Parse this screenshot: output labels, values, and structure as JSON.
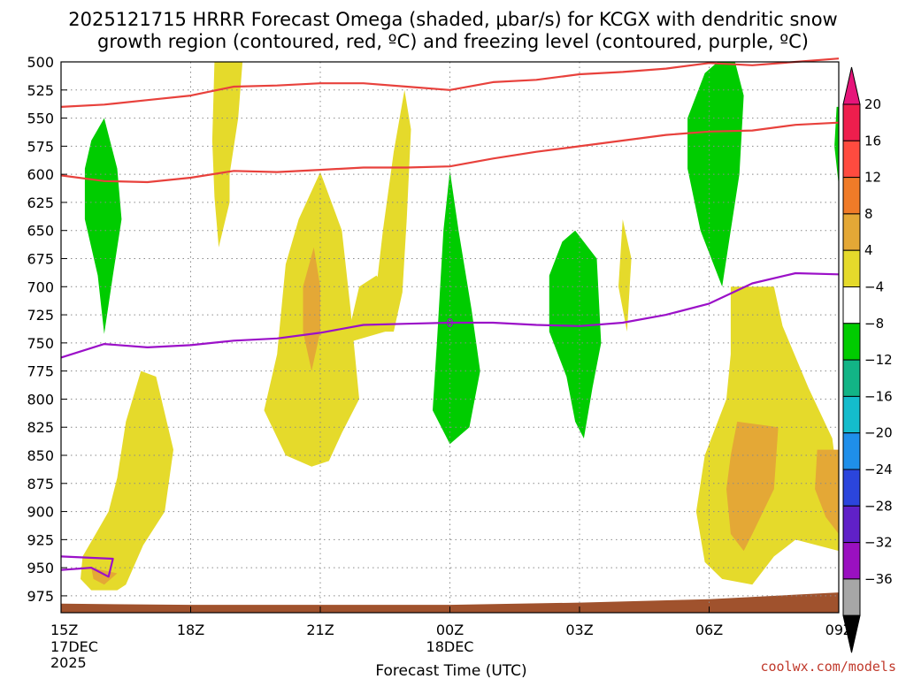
{
  "chart_data": {
    "type": "heatmap",
    "title_line1": "2025121715 HRRR Forecast Omega (shaded, μbar/s) for KCGX with dendritic snow",
    "title_line2": "growth region (contoured, red, ºC) and freezing level (contoured, purple, ºC)",
    "xlabel": "Forecast Time (UTC)",
    "ylabel": "",
    "credit": "coolwx.com/models",
    "x_unit": "hours after 15Z 17DEC",
    "xlim": [
      0,
      18
    ],
    "ylim": [
      990,
      500
    ],
    "x_ticks": [
      {
        "x": 0,
        "label": "15Z",
        "sub1": "17DEC",
        "sub2": "2025"
      },
      {
        "x": 3,
        "label": "18Z",
        "sub1": "",
        "sub2": ""
      },
      {
        "x": 6,
        "label": "21Z",
        "sub1": "",
        "sub2": ""
      },
      {
        "x": 9,
        "label": "00Z",
        "sub1": "18DEC",
        "sub2": ""
      },
      {
        "x": 12,
        "label": "03Z",
        "sub1": "",
        "sub2": ""
      },
      {
        "x": 15,
        "label": "06Z",
        "sub1": "",
        "sub2": ""
      },
      {
        "x": 18,
        "label": "09Z",
        "sub1": "",
        "sub2": ""
      }
    ],
    "y_ticks": [
      500,
      525,
      550,
      575,
      600,
      625,
      650,
      675,
      700,
      725,
      750,
      775,
      800,
      825,
      850,
      875,
      900,
      925,
      950,
      975
    ],
    "colorbar": {
      "labels": [
        "20",
        "16",
        "12",
        "8",
        "4",
        "−4",
        "−8",
        "−12",
        "−16",
        "−20",
        "−24",
        "−28",
        "−32",
        "−36"
      ],
      "colors": [
        "#ee1e4d",
        "#ff4b3f",
        "#f07b28",
        "#e4a836",
        "#e5da2b",
        "#ffffff",
        "#00cc00",
        "#12b486",
        "#14bccc",
        "#1f8fea",
        "#2b45dc",
        "#6020c8",
        "#9a10c0",
        "#a6a6a6"
      ]
    },
    "shaded_regions": [
      {
        "fill": "#e5da2b",
        "points": [
          [
            3.55,
            500
          ],
          [
            4.2,
            500
          ],
          [
            4.1,
            550
          ],
          [
            3.9,
            600
          ],
          [
            3.9,
            625
          ],
          [
            3.65,
            665
          ],
          [
            3.55,
            620
          ],
          [
            3.5,
            570
          ]
        ]
      },
      {
        "fill": "#e5da2b",
        "points": [
          [
            7.95,
            525
          ],
          [
            8.1,
            560
          ],
          [
            8.0,
            640
          ],
          [
            7.9,
            705
          ],
          [
            7.7,
            740
          ],
          [
            7.4,
            740
          ],
          [
            7.3,
            700
          ],
          [
            7.45,
            650
          ],
          [
            7.7,
            580
          ]
        ]
      },
      {
        "fill": "#e5da2b",
        "points": [
          [
            6.0,
            598
          ],
          [
            6.5,
            650
          ],
          [
            6.7,
            720
          ],
          [
            6.9,
            800
          ],
          [
            6.5,
            830
          ],
          [
            6.2,
            855
          ],
          [
            5.8,
            860
          ],
          [
            5.2,
            850
          ],
          [
            4.7,
            810
          ],
          [
            5.0,
            760
          ],
          [
            5.2,
            680
          ],
          [
            5.5,
            640
          ]
        ]
      },
      {
        "fill": "#e5da2b",
        "points": [
          [
            6.6,
            750
          ],
          [
            6.9,
            700
          ],
          [
            7.3,
            690
          ],
          [
            7.5,
            700
          ],
          [
            7.5,
            740
          ]
        ]
      },
      {
        "fill": "#e4a836",
        "points": [
          [
            5.85,
            665
          ],
          [
            6.0,
            700
          ],
          [
            6.0,
            740
          ],
          [
            5.8,
            775
          ],
          [
            5.6,
            740
          ],
          [
            5.6,
            700
          ]
        ]
      },
      {
        "fill": "#e5da2b",
        "points": [
          [
            1.85,
            775
          ],
          [
            2.2,
            780
          ],
          [
            2.6,
            845
          ],
          [
            2.4,
            900
          ],
          [
            1.9,
            930
          ],
          [
            1.5,
            965
          ],
          [
            1.3,
            970
          ],
          [
            0.7,
            970
          ],
          [
            0.45,
            960
          ],
          [
            0.5,
            940
          ],
          [
            0.8,
            920
          ],
          [
            1.1,
            900
          ],
          [
            1.3,
            870
          ],
          [
            1.5,
            820
          ]
        ]
      },
      {
        "fill": "#e4a836",
        "points": [
          [
            0.7,
            950
          ],
          [
            1.3,
            955
          ],
          [
            1.0,
            965
          ],
          [
            0.75,
            960
          ]
        ]
      },
      {
        "fill": "#e5da2b",
        "points": [
          [
            13.0,
            640
          ],
          [
            13.2,
            675
          ],
          [
            13.1,
            740
          ],
          [
            12.9,
            700
          ]
        ]
      },
      {
        "fill": "#e5da2b",
        "points": [
          [
            15.5,
            700
          ],
          [
            16.5,
            700
          ],
          [
            16.7,
            735
          ],
          [
            17.3,
            790
          ],
          [
            17.85,
            835
          ],
          [
            18.0,
            880
          ],
          [
            18.0,
            935
          ],
          [
            17.0,
            925
          ],
          [
            16.5,
            940
          ],
          [
            16.0,
            965
          ],
          [
            15.3,
            960
          ],
          [
            14.9,
            945
          ],
          [
            14.7,
            900
          ],
          [
            14.9,
            850
          ],
          [
            15.4,
            800
          ],
          [
            15.5,
            760
          ]
        ]
      },
      {
        "fill": "#e4a836",
        "points": [
          [
            15.65,
            820
          ],
          [
            16.6,
            825
          ],
          [
            16.5,
            880
          ],
          [
            16.0,
            920
          ],
          [
            15.8,
            935
          ],
          [
            15.5,
            920
          ],
          [
            15.4,
            880
          ],
          [
            15.5,
            850
          ]
        ]
      },
      {
        "fill": "#e4a836",
        "points": [
          [
            17.5,
            845
          ],
          [
            18.0,
            845
          ],
          [
            18.0,
            920
          ],
          [
            17.7,
            905
          ],
          [
            17.45,
            880
          ]
        ]
      },
      {
        "fill": "#00cc00",
        "points": [
          [
            1.0,
            550
          ],
          [
            1.3,
            595
          ],
          [
            1.4,
            640
          ],
          [
            1.2,
            690
          ],
          [
            1.0,
            742
          ],
          [
            0.85,
            690
          ],
          [
            0.55,
            640
          ],
          [
            0.55,
            595
          ],
          [
            0.7,
            570
          ]
        ]
      },
      {
        "fill": "#00cc00",
        "points": [
          [
            9.0,
            597
          ],
          [
            9.2,
            650
          ],
          [
            9.5,
            720
          ],
          [
            9.7,
            775
          ],
          [
            9.45,
            825
          ],
          [
            9.0,
            840
          ],
          [
            8.6,
            810
          ],
          [
            8.7,
            750
          ],
          [
            8.85,
            650
          ]
        ]
      },
      {
        "fill": "#00cc00",
        "points": [
          [
            11.9,
            650
          ],
          [
            12.4,
            675
          ],
          [
            12.5,
            750
          ],
          [
            12.3,
            790
          ],
          [
            12.1,
            835
          ],
          [
            11.9,
            820
          ],
          [
            11.7,
            780
          ],
          [
            11.3,
            740
          ],
          [
            11.3,
            690
          ],
          [
            11.6,
            660
          ]
        ]
      },
      {
        "fill": "#00cc00",
        "points": [
          [
            15.2,
            500
          ],
          [
            15.6,
            500
          ],
          [
            15.8,
            530
          ],
          [
            15.7,
            600
          ],
          [
            15.5,
            650
          ],
          [
            15.3,
            700
          ],
          [
            14.8,
            650
          ],
          [
            14.5,
            595
          ],
          [
            14.5,
            550
          ],
          [
            14.9,
            510
          ]
        ]
      },
      {
        "fill": "#00cc00",
        "points": [
          [
            17.95,
            540
          ],
          [
            18.0,
            540
          ],
          [
            18.0,
            610
          ],
          [
            17.9,
            575
          ]
        ]
      }
    ],
    "contours": [
      {
        "name": "dgz-upper",
        "color": "#e8413c",
        "label": "",
        "points": [
          [
            0,
            540
          ],
          [
            1,
            538
          ],
          [
            2,
            534
          ],
          [
            3,
            530
          ],
          [
            4,
            522
          ],
          [
            5,
            521
          ],
          [
            6,
            519
          ],
          [
            7,
            519
          ],
          [
            8,
            522
          ],
          [
            9,
            525
          ],
          [
            10,
            518
          ],
          [
            11,
            516
          ],
          [
            12,
            511
          ],
          [
            13,
            509
          ],
          [
            14,
            506
          ],
          [
            15,
            501
          ],
          [
            16,
            503
          ],
          [
            17,
            500
          ],
          [
            18,
            497
          ]
        ]
      },
      {
        "name": "dgz-lower",
        "color": "#e8413c",
        "label": "",
        "points": [
          [
            0,
            601
          ],
          [
            1,
            606
          ],
          [
            2,
            607
          ],
          [
            3,
            603
          ],
          [
            4,
            597
          ],
          [
            5,
            598
          ],
          [
            6,
            596
          ],
          [
            7,
            594
          ],
          [
            8,
            594
          ],
          [
            9,
            593
          ],
          [
            10,
            586
          ],
          [
            11,
            580
          ],
          [
            12,
            575
          ],
          [
            13,
            570
          ],
          [
            14,
            565
          ],
          [
            15,
            562
          ],
          [
            16,
            561
          ],
          [
            17,
            556
          ],
          [
            18,
            554
          ]
        ]
      },
      {
        "name": "freezing-level",
        "color": "#9b10c8",
        "label": "0",
        "points": [
          [
            0,
            763
          ],
          [
            1,
            751
          ],
          [
            2,
            754
          ],
          [
            3,
            752
          ],
          [
            4,
            748
          ],
          [
            5,
            746
          ],
          [
            6,
            741
          ],
          [
            7,
            734
          ],
          [
            8,
            733
          ],
          [
            9,
            732
          ],
          [
            10,
            732
          ],
          [
            11,
            734
          ],
          [
            12,
            735
          ],
          [
            13,
            732
          ],
          [
            14,
            725
          ],
          [
            15,
            715
          ],
          [
            16,
            697
          ],
          [
            17,
            688
          ],
          [
            18,
            689
          ]
        ]
      },
      {
        "name": "freezing-level-low",
        "color": "#9b10c8",
        "label": "",
        "points": [
          [
            0,
            940
          ],
          [
            1.2,
            942
          ],
          [
            1.1,
            958
          ],
          [
            0.7,
            950
          ],
          [
            0,
            952
          ]
        ]
      }
    ],
    "terrain": {
      "color": "#a0522d",
      "top": [
        [
          0,
          982
        ],
        [
          3,
          983
        ],
        [
          6,
          983
        ],
        [
          9,
          983
        ],
        [
          12,
          981
        ],
        [
          15,
          978
        ],
        [
          18,
          972
        ]
      ],
      "bottom": 990
    }
  }
}
